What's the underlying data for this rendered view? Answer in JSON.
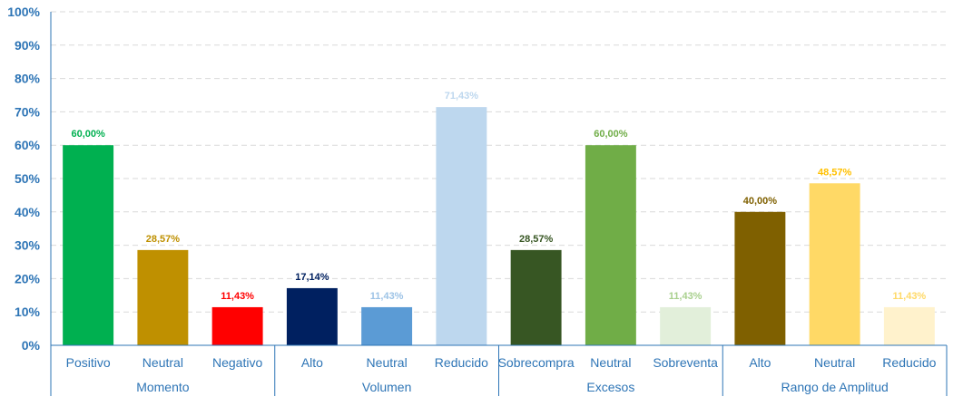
{
  "chart_data": {
    "type": "bar",
    "ylim": [
      0,
      100
    ],
    "y_ticks": [
      "0%",
      "10%",
      "20%",
      "30%",
      "40%",
      "50%",
      "60%",
      "70%",
      "80%",
      "90%",
      "100%"
    ],
    "y_tick_values": [
      0,
      10,
      20,
      30,
      40,
      50,
      60,
      70,
      80,
      90,
      100
    ],
    "grid": true,
    "groups": [
      {
        "name": "Momento",
        "bars": [
          {
            "category": "Positivo",
            "value": 60.0,
            "label": "60,00%",
            "color": "#00B050",
            "label_color": "#00B050"
          },
          {
            "category": "Neutral",
            "value": 28.57,
            "label": "28,57%",
            "color": "#BF9000",
            "label_color": "#BF9000"
          },
          {
            "category": "Negativo",
            "value": 11.43,
            "label": "11,43%",
            "color": "#FF0000",
            "label_color": "#FF0000"
          }
        ]
      },
      {
        "name": "Volumen",
        "bars": [
          {
            "category": "Alto",
            "value": 17.14,
            "label": "17,14%",
            "color": "#002060",
            "label_color": "#002060"
          },
          {
            "category": "Neutral",
            "value": 11.43,
            "label": "11,43%",
            "color": "#5B9BD5",
            "label_color": "#9DC3E6"
          },
          {
            "category": "Reducido",
            "value": 71.43,
            "label": "71,43%",
            "color": "#BDD7EE",
            "label_color": "#BDD7EE"
          }
        ]
      },
      {
        "name": "Excesos",
        "bars": [
          {
            "category": "Sobrecompra",
            "value": 28.57,
            "label": "28,57%",
            "color": "#375623",
            "label_color": "#375623"
          },
          {
            "category": "Neutral",
            "value": 60.0,
            "label": "60,00%",
            "color": "#70AD47",
            "label_color": "#70AD47"
          },
          {
            "category": "Sobreventa",
            "value": 11.43,
            "label": "11,43%",
            "color": "#E2EFDA",
            "label_color": "#A9D08E"
          }
        ]
      },
      {
        "name": "Rango de Amplitud",
        "bars": [
          {
            "category": "Alto",
            "value": 40.0,
            "label": "40,00%",
            "color": "#7F6000",
            "label_color": "#7F6000"
          },
          {
            "category": "Neutral",
            "value": 48.57,
            "label": "48,57%",
            "color": "#FFD966",
            "label_color": "#FFC000"
          },
          {
            "category": "Reducido",
            "value": 11.43,
            "label": "11,43%",
            "color": "#FFF2CC",
            "label_color": "#FFD966"
          }
        ]
      }
    ],
    "axis_color": "#2E75B6",
    "grid_color": "#D9D9D9"
  }
}
